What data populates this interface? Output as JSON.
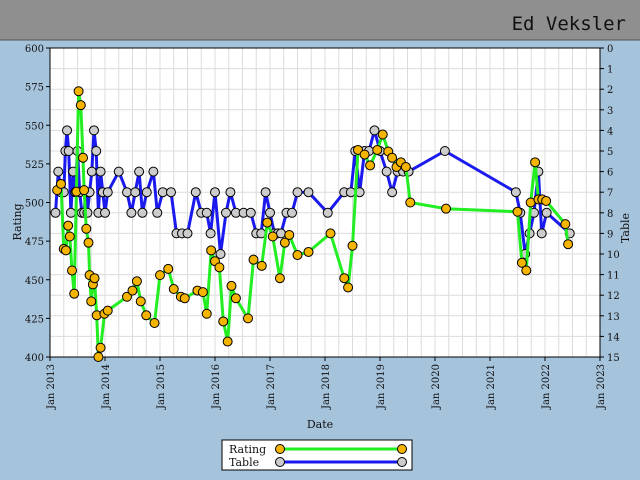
{
  "header": {
    "player_name": "Ed Veksler"
  },
  "colors": {
    "header_bg": "#8f8f8f",
    "page_bg": "#a6c3dc",
    "plot_bg": "#ffffff",
    "grid": "#dcdcdc",
    "rating_line": "#22ee22",
    "rating_marker": "#f5b400",
    "table_line": "#1a1aee",
    "table_marker": "#cccccc"
  },
  "chart_data": {
    "type": "line",
    "title": "",
    "xlabel": "Date",
    "ylabel": "Rating",
    "y2label": "Table",
    "xlim": [
      2013.0,
      2023.0
    ],
    "ylim": [
      400,
      600
    ],
    "y2lim": [
      0,
      15
    ],
    "y2_inverted": true,
    "grid": true,
    "x_ticks": [
      {
        "value": 2013,
        "label": "Jan 2013"
      },
      {
        "value": 2014,
        "label": "Jan 2014"
      },
      {
        "value": 2015,
        "label": "Jan 2015"
      },
      {
        "value": 2016,
        "label": "Jan 2016"
      },
      {
        "value": 2017,
        "label": "Jan 2017"
      },
      {
        "value": 2018,
        "label": "Jan 2018"
      },
      {
        "value": 2019,
        "label": "Jan 2019"
      },
      {
        "value": 2020,
        "label": "Jan 2020"
      },
      {
        "value": 2021,
        "label": "Jan 2021"
      },
      {
        "value": 2022,
        "label": "Jan 2022"
      },
      {
        "value": 2023,
        "label": "Jan 2023"
      }
    ],
    "y_ticks": [
      400,
      425,
      450,
      475,
      500,
      525,
      550,
      575,
      600
    ],
    "y2_ticks": [
      0,
      1,
      2,
      3,
      4,
      5,
      6,
      7,
      8,
      9,
      10,
      11,
      12,
      13,
      14,
      15
    ],
    "legend": {
      "position": "bottom-center",
      "entries": [
        "Rating",
        "Table"
      ]
    },
    "series": [
      {
        "name": "Rating",
        "axis": "left",
        "x": [
          2013.13,
          2013.2,
          2013.25,
          2013.29,
          2013.33,
          2013.36,
          2013.4,
          2013.44,
          2013.48,
          2013.52,
          2013.56,
          2013.6,
          2013.62,
          2013.66,
          2013.7,
          2013.72,
          2013.75,
          2013.78,
          2013.81,
          2013.85,
          2013.88,
          2013.92,
          2013.99,
          2014.05,
          2014.4,
          2014.5,
          2014.58,
          2014.65,
          2014.75,
          2014.9,
          2015.0,
          2015.15,
          2015.25,
          2015.38,
          2015.45,
          2015.68,
          2015.78,
          2015.85,
          2015.93,
          2016.0,
          2016.08,
          2016.15,
          2016.23,
          2016.3,
          2016.38,
          2016.6,
          2016.7,
          2016.85,
          2016.95,
          2017.05,
          2017.18,
          2017.27,
          2017.35,
          2017.5,
          2017.7,
          2018.1,
          2018.35,
          2018.42,
          2018.5,
          2018.6,
          2018.72,
          2018.82,
          2018.95,
          2019.05,
          2019.15,
          2019.22,
          2019.3,
          2019.38,
          2019.47,
          2019.55,
          2020.2,
          2021.5,
          2021.58,
          2021.66,
          2021.74,
          2021.82,
          2021.88,
          2021.95,
          2022.02,
          2022.37,
          2022.42
        ],
        "y": [
          508,
          512,
          470,
          469,
          485,
          478,
          456,
          441,
          507,
          572,
          563,
          529,
          508,
          483,
          474,
          453,
          436,
          447,
          451,
          427,
          400,
          406,
          428,
          430,
          439,
          443,
          449,
          436,
          427,
          422,
          453,
          457,
          444,
          439,
          438,
          443,
          442,
          428,
          469,
          462,
          458,
          423,
          410,
          446,
          438,
          425,
          463,
          459,
          487,
          478,
          451,
          474,
          479,
          466,
          468,
          480,
          451,
          445,
          472,
          534,
          531,
          524,
          534,
          544,
          533,
          529,
          523,
          526,
          523,
          500,
          496,
          494,
          461,
          456,
          500,
          526,
          502,
          502,
          501,
          486,
          473
        ]
      },
      {
        "name": "Table",
        "axis": "right",
        "x": [
          2013.1,
          2013.15,
          2013.2,
          2013.25,
          2013.28,
          2013.31,
          2013.34,
          2013.38,
          2013.42,
          2013.46,
          2013.5,
          2013.54,
          2013.58,
          2013.62,
          2013.65,
          2013.68,
          2013.72,
          2013.76,
          2013.8,
          2013.84,
          2013.88,
          2013.92,
          2013.96,
          2014.0,
          2014.05,
          2014.25,
          2014.4,
          2014.48,
          2014.55,
          2014.62,
          2014.68,
          2014.76,
          2014.88,
          2014.95,
          2015.05,
          2015.2,
          2015.3,
          2015.4,
          2015.5,
          2015.65,
          2015.75,
          2015.85,
          2015.92,
          2016.0,
          2016.1,
          2016.2,
          2016.28,
          2016.38,
          2016.52,
          2016.65,
          2016.75,
          2016.84,
          2016.92,
          2017.0,
          2017.08,
          2017.14,
          2017.2,
          2017.3,
          2017.4,
          2017.5,
          2017.7,
          2018.05,
          2018.35,
          2018.47,
          2018.55,
          2018.63,
          2018.72,
          2018.8,
          2018.9,
          2019.0,
          2019.12,
          2019.22,
          2019.32,
          2019.42,
          2019.52,
          2020.18,
          2021.47,
          2021.55,
          2021.64,
          2021.72,
          2021.8,
          2021.88,
          2021.94,
          2022.03,
          2022.45
        ],
        "y": [
          8,
          6,
          7,
          7,
          5,
          4,
          5,
          8,
          6,
          7,
          5,
          7,
          8,
          8,
          7,
          8,
          7,
          6,
          4,
          5,
          8,
          6,
          7,
          8,
          7,
          6,
          7,
          8,
          7,
          6,
          8,
          7,
          6,
          8,
          7,
          7,
          9,
          9,
          9,
          7,
          8,
          8,
          9,
          7,
          10,
          8,
          7,
          8,
          8,
          8,
          9,
          9,
          7,
          8,
          9,
          9,
          9,
          8,
          8,
          7,
          7,
          8,
          7,
          7,
          5,
          7,
          5,
          5,
          4,
          5,
          6,
          7,
          6,
          6,
          6,
          5,
          7,
          8,
          10,
          9,
          8,
          6,
          9,
          8,
          9
        ]
      }
    ]
  }
}
